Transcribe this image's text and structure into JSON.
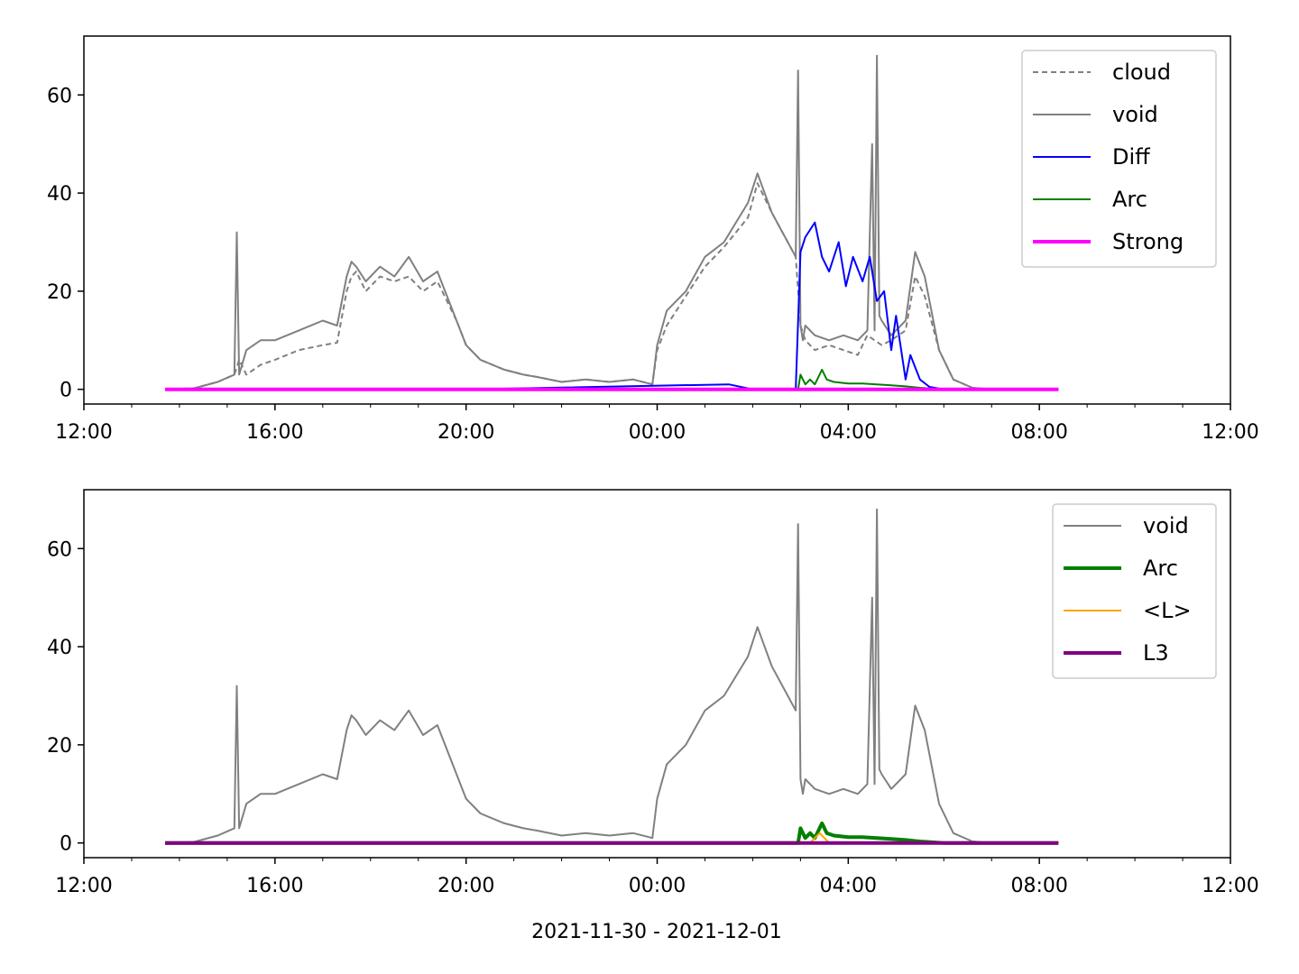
{
  "figure": {
    "xlabel": "2021-11-30 - 2021-12-01"
  },
  "chart_data": [
    {
      "type": "line",
      "title": "",
      "xlabel": "",
      "ylabel": "",
      "x_unit": "hours since 2021-11-30 00:00",
      "xlim": [
        12,
        36
      ],
      "ylim": [
        -3,
        72
      ],
      "xtick_values": [
        12,
        16,
        20,
        24,
        28,
        32,
        36
      ],
      "xtick_labels": [
        "12:00",
        "16:00",
        "20:00",
        "00:00",
        "04:00",
        "08:00",
        "12:00"
      ],
      "ytick_values": [
        0,
        20,
        40,
        60
      ],
      "ytick_labels": [
        "0",
        "20",
        "40",
        "60"
      ],
      "grid": false,
      "legend_position": "top-right",
      "series": [
        {
          "name": "cloud",
          "color": "#808080",
          "style": "dashed",
          "x": [
            13.7,
            14.3,
            14.8,
            15.15,
            15.25,
            15.4,
            15.7,
            16.0,
            16.5,
            17.0,
            17.3,
            17.5,
            17.6,
            17.7,
            17.9,
            18.2,
            18.5,
            18.8,
            19.1,
            19.4,
            19.8,
            20.0,
            20.3,
            20.8,
            21.2,
            21.5,
            22.0,
            22.5,
            23.0,
            23.5,
            23.9,
            24.0,
            24.2,
            24.6,
            25.0,
            25.4,
            25.9,
            26.1,
            26.4,
            26.9,
            27.0,
            27.1,
            27.3,
            27.6,
            27.9,
            28.2,
            28.4,
            28.55,
            28.7,
            28.9,
            29.2,
            29.4,
            29.6,
            29.9,
            30.2,
            30.6,
            31.0,
            31.5,
            32.0,
            32.3,
            32.4
          ],
          "y": [
            0,
            0.2,
            1.5,
            3,
            6,
            3,
            5,
            6,
            8,
            9,
            9.5,
            20,
            23,
            24,
            20,
            23,
            22,
            23,
            20,
            22,
            14,
            9,
            6,
            4,
            3,
            2.5,
            1.5,
            2,
            1.5,
            2,
            1,
            8,
            13,
            19,
            25,
            29,
            35,
            42,
            36,
            27,
            13,
            10,
            8,
            9,
            8,
            7,
            11,
            10,
            9,
            10,
            12,
            23,
            19,
            8,
            2,
            0.3,
            0,
            0,
            0,
            0,
            0
          ]
        },
        {
          "name": "void",
          "color": "#808080",
          "style": "solid",
          "x": [
            13.7,
            14.3,
            14.8,
            15.15,
            15.2,
            15.25,
            15.4,
            15.7,
            16.0,
            16.5,
            17.0,
            17.3,
            17.5,
            17.6,
            17.7,
            17.9,
            18.2,
            18.5,
            18.8,
            19.1,
            19.4,
            19.8,
            20.0,
            20.3,
            20.8,
            21.2,
            21.5,
            22.0,
            22.5,
            23.0,
            23.5,
            23.9,
            24.0,
            24.2,
            24.6,
            25.0,
            25.4,
            25.9,
            26.1,
            26.4,
            26.9,
            26.95,
            27.0,
            27.05,
            27.1,
            27.3,
            27.6,
            27.9,
            28.2,
            28.4,
            28.5,
            28.55,
            28.6,
            28.65,
            28.7,
            28.9,
            29.2,
            29.4,
            29.6,
            29.9,
            30.2,
            30.6,
            31.0,
            31.5,
            32.0,
            32.3,
            32.4
          ],
          "y": [
            0,
            0.2,
            1.5,
            3,
            32,
            3,
            8,
            10,
            10,
            12,
            14,
            13,
            23,
            26,
            25,
            22,
            25,
            23,
            27,
            22,
            24,
            14,
            9,
            6,
            4,
            3,
            2.5,
            1.5,
            2,
            1.5,
            2,
            1,
            9,
            16,
            20,
            27,
            30,
            38,
            44,
            36,
            27,
            65,
            13,
            10,
            13,
            11,
            10,
            11,
            10,
            12,
            50,
            12,
            68,
            15,
            14,
            11,
            14,
            28,
            23,
            8,
            2,
            0.3,
            0,
            0,
            0,
            0,
            0
          ]
        },
        {
          "name": "Diff",
          "color": "#0000ff",
          "style": "solid",
          "x": [
            13.7,
            15.0,
            20.0,
            25.5,
            26.0,
            26.9,
            27.0,
            27.1,
            27.3,
            27.45,
            27.6,
            27.8,
            27.95,
            28.1,
            28.3,
            28.45,
            28.6,
            28.75,
            28.9,
            29.0,
            29.2,
            29.3,
            29.5,
            29.7,
            30.0,
            32.0,
            32.4
          ],
          "y": [
            0,
            0,
            0,
            1,
            0,
            0,
            28,
            31,
            34,
            27,
            24,
            30,
            21,
            27,
            22,
            27,
            18,
            20,
            8,
            15,
            2,
            7,
            2,
            0.5,
            0,
            0,
            0
          ]
        },
        {
          "name": "Arc",
          "color": "#008000",
          "style": "solid",
          "x": [
            13.7,
            20.0,
            26.0,
            26.95,
            27.0,
            27.1,
            27.2,
            27.3,
            27.45,
            27.55,
            27.7,
            28.0,
            28.3,
            28.6,
            28.9,
            29.2,
            29.5,
            30.0,
            32.4
          ],
          "y": [
            0,
            0,
            0,
            0,
            3,
            1,
            2,
            1,
            4,
            2,
            1.5,
            1.2,
            1.2,
            1,
            0.8,
            0.6,
            0.3,
            0,
            0
          ]
        },
        {
          "name": "Strong",
          "color": "#ff00ff",
          "style": "solid",
          "x": [
            13.7,
            32.4
          ],
          "y": [
            0,
            0
          ]
        }
      ]
    },
    {
      "type": "line",
      "title": "",
      "xlabel": "2021-11-30 - 2021-12-01",
      "ylabel": "",
      "x_unit": "hours since 2021-11-30 00:00",
      "xlim": [
        12,
        36
      ],
      "ylim": [
        -3,
        72
      ],
      "xtick_values": [
        12,
        16,
        20,
        24,
        28,
        32,
        36
      ],
      "xtick_labels": [
        "12:00",
        "16:00",
        "20:00",
        "00:00",
        "04:00",
        "08:00",
        "12:00"
      ],
      "ytick_values": [
        0,
        20,
        40,
        60
      ],
      "ytick_labels": [
        "0",
        "20",
        "40",
        "60"
      ],
      "grid": false,
      "legend_position": "top-right",
      "series": [
        {
          "name": "void",
          "color": "#808080",
          "style": "solid",
          "x": [
            13.7,
            14.3,
            14.8,
            15.15,
            15.2,
            15.25,
            15.4,
            15.7,
            16.0,
            16.5,
            17.0,
            17.3,
            17.5,
            17.6,
            17.7,
            17.9,
            18.2,
            18.5,
            18.8,
            19.1,
            19.4,
            19.8,
            20.0,
            20.3,
            20.8,
            21.2,
            21.5,
            22.0,
            22.5,
            23.0,
            23.5,
            23.9,
            24.0,
            24.2,
            24.6,
            25.0,
            25.4,
            25.9,
            26.1,
            26.4,
            26.9,
            26.95,
            27.0,
            27.05,
            27.1,
            27.3,
            27.6,
            27.9,
            28.2,
            28.4,
            28.5,
            28.55,
            28.6,
            28.65,
            28.7,
            28.9,
            29.2,
            29.4,
            29.6,
            29.9,
            30.2,
            30.6,
            31.0,
            31.5,
            32.0,
            32.3,
            32.4
          ],
          "y": [
            0,
            0.2,
            1.5,
            3,
            32,
            3,
            8,
            10,
            10,
            12,
            14,
            13,
            23,
            26,
            25,
            22,
            25,
            23,
            27,
            22,
            24,
            14,
            9,
            6,
            4,
            3,
            2.5,
            1.5,
            2,
            1.5,
            2,
            1,
            9,
            16,
            20,
            27,
            30,
            38,
            44,
            36,
            27,
            65,
            13,
            10,
            13,
            11,
            10,
            11,
            10,
            12,
            50,
            12,
            68,
            15,
            14,
            11,
            14,
            28,
            23,
            8,
            2,
            0.3,
            0,
            0,
            0,
            0,
            0
          ]
        },
        {
          "name": "Arc",
          "color": "#008000",
          "style": "solid",
          "x": [
            13.7,
            20.0,
            26.0,
            26.95,
            27.0,
            27.1,
            27.2,
            27.3,
            27.45,
            27.55,
            27.7,
            28.0,
            28.3,
            28.6,
            28.9,
            29.2,
            29.5,
            30.0,
            32.4
          ],
          "y": [
            0,
            0,
            0,
            0,
            3,
            1,
            2,
            1,
            4,
            2,
            1.5,
            1.2,
            1.2,
            1,
            0.8,
            0.6,
            0.3,
            0,
            0
          ]
        },
        {
          "name": "<L>",
          "color": "#ffa500",
          "style": "solid",
          "x": [
            13.7,
            27.2,
            27.3,
            27.4,
            27.5,
            27.6,
            32.4
          ],
          "y": [
            0,
            0,
            1,
            2,
            1,
            0,
            0
          ]
        },
        {
          "name": "L3",
          "color": "#800080",
          "style": "solid",
          "x": [
            13.7,
            32.4
          ],
          "y": [
            0,
            0
          ]
        }
      ]
    }
  ]
}
